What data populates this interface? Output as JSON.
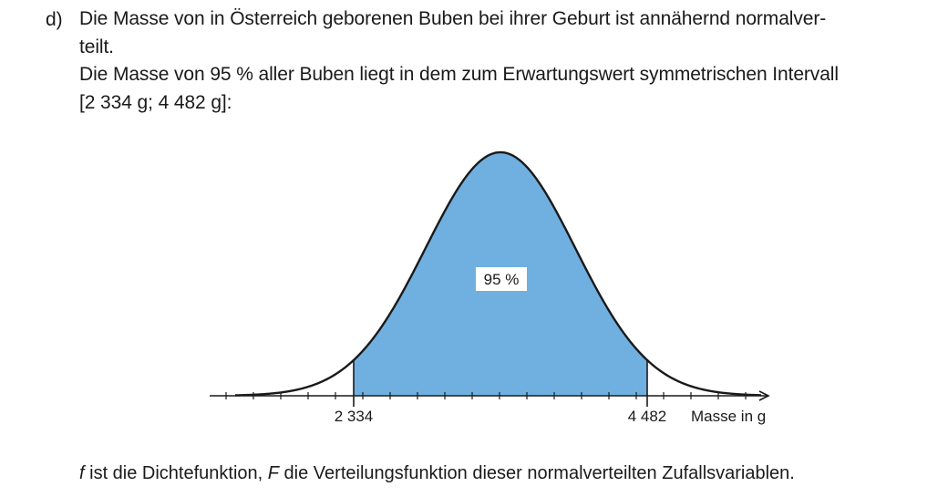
{
  "task": {
    "label": "d)",
    "intro_line1": "Die Masse von in Österreich geborenen Buben bei ihrer Geburt ist annähernd normalver-",
    "intro_line2": "teilt.",
    "statement_line1": "Die Masse von 95 % aller Buben liegt in dem zum Erwartungswert symmetrischen Intervall",
    "statement_line2": "[2 334 g; 4 482 g]:"
  },
  "chart_data": {
    "type": "area",
    "distribution": "normal",
    "interval": [
      2334,
      4482
    ],
    "mean": 3408,
    "shaded_label": "95 %",
    "xlabel": "Masse in g",
    "tick_labels": [
      "2 334",
      "4 482"
    ],
    "fill_color": "#6fb0e0",
    "line_color": "#1a1a1a"
  },
  "footer": {
    "f_symbol": "f",
    "part1": " ist die Dichtefunktion, ",
    "F_symbol": "F",
    "part2": " die Verteilungsfunktion dieser normalverteilten Zufallsvariablen."
  }
}
